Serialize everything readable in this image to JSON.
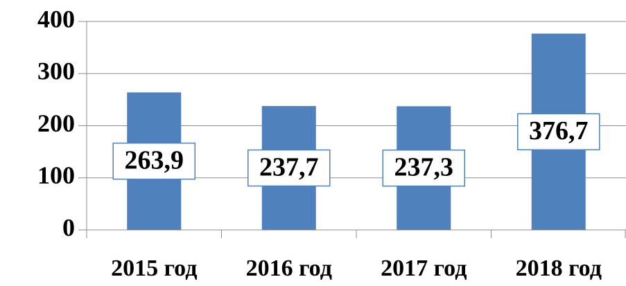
{
  "chart_data": {
    "type": "bar",
    "categories": [
      "2015 год",
      "2016 год",
      "2017 год",
      "2018 год"
    ],
    "values": [
      263.9,
      237.7,
      237.3,
      376.7
    ],
    "value_labels": [
      "263,9",
      "237,7",
      "237,3",
      "376,7"
    ],
    "color": "#4f81bd",
    "ylim": [
      0,
      400
    ],
    "yticks": [
      0,
      100,
      200,
      300,
      400
    ],
    "grid": true
  }
}
